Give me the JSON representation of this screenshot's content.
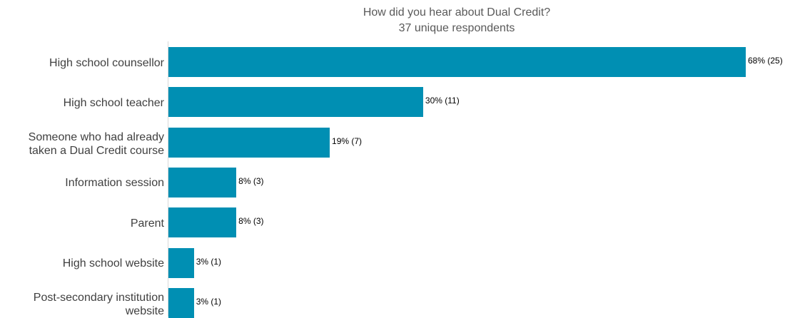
{
  "chart_data": {
    "type": "bar",
    "orientation": "horizontal",
    "title": "How did you hear about Dual Credit?",
    "subtitle": "37 unique respondents",
    "xlabel": "",
    "ylabel": "",
    "grid": false,
    "xlim": [
      0,
      68
    ],
    "categories": [
      [
        "High school counsellor"
      ],
      [
        "High school teacher"
      ],
      [
        "Someone who had already",
        "taken a Dual Credit course"
      ],
      [
        "Information session"
      ],
      [
        "Parent"
      ],
      [
        "High school website"
      ],
      [
        "Post-secondary institution",
        "website"
      ]
    ],
    "values": [
      68,
      30,
      19,
      8,
      8,
      3,
      3
    ],
    "data_labels": [
      "68% (25)",
      "30% (11)",
      "19% (7)",
      "8% (3)",
      "8% (3)",
      "3% (1)",
      "3% (1)"
    ],
    "bar_color": "#008fb3"
  }
}
